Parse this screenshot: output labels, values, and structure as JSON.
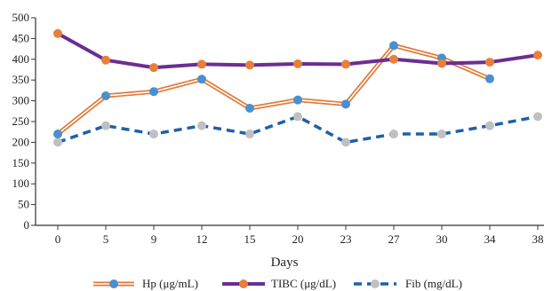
{
  "chart_data": {
    "type": "line",
    "title": "",
    "xlabel": "Days",
    "ylabel": "",
    "categories": [
      "0",
      "5",
      "9",
      "12",
      "15",
      "20",
      "23",
      "27",
      "30",
      "34",
      "38"
    ],
    "ylim": [
      0,
      500
    ],
    "yticks": [
      0,
      50,
      100,
      150,
      200,
      250,
      300,
      350,
      400,
      450,
      500
    ],
    "grid": false,
    "legend": "bottom",
    "series": [
      {
        "name": "Hp (μg/mL)",
        "values": [
          220,
          312,
          322,
          352,
          282,
          302,
          292,
          433,
          403,
          353,
          null
        ],
        "line_style": "double",
        "line_color": "#e07a3a",
        "marker_color": "#4a90d0"
      },
      {
        "name": "TIBC (μg/dL)",
        "values": [
          462,
          398,
          380,
          388,
          386,
          389,
          388,
          400,
          390,
          393,
          410
        ],
        "line_style": "solid",
        "line_color": "#6b2e91",
        "marker_color": "#e8803a"
      },
      {
        "name": "Fib (mg/dL)",
        "values": [
          200,
          240,
          220,
          240,
          220,
          262,
          200,
          220,
          220,
          240,
          262
        ],
        "line_style": "dashed",
        "line_color": "#1f5fa8",
        "marker_color": "#c0c0c0"
      }
    ]
  }
}
